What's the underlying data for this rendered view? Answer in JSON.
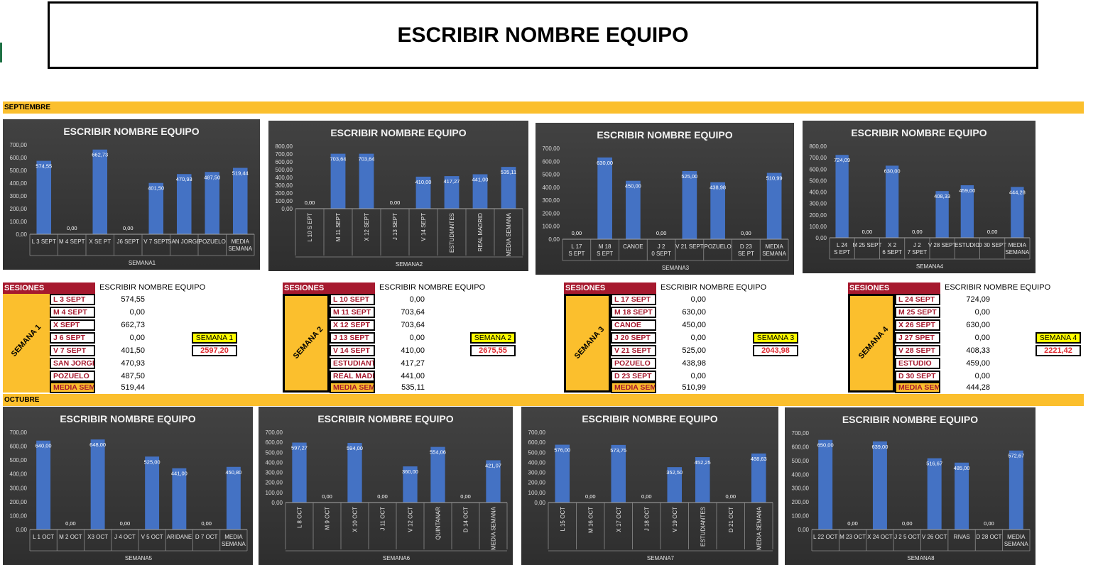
{
  "title": "ESCRIBIR NOMBRE EQUIPO",
  "months": {
    "september": "SEPTIEMBRE",
    "october": "OCTUBRE"
  },
  "colors": {
    "bar": "#4472c4",
    "band": "#fbbf2d",
    "header": "#a6192e",
    "total": "#e0282e"
  },
  "chart_data": [
    {
      "type": "bar",
      "title": "ESCRIBIR NOMBRE EQUIPO",
      "xlabel": "SEMANA1",
      "ylim": [
        0,
        700
      ],
      "yticks": [
        "0,00",
        "100,00",
        "200,00",
        "300,00",
        "400,00",
        "500,00",
        "600,00",
        "700,00"
      ],
      "categories": [
        "L 3 SEPT",
        "M 4 SEPT",
        "X SE PT",
        "J6 SEPT",
        "V 7 SEPT",
        "SAN JORGE",
        "POZUELO",
        "MEDIA SEMANA"
      ],
      "values": [
        574.55,
        0,
        662.73,
        0,
        401.5,
        470.93,
        487.5,
        519.44
      ],
      "labels": [
        "574,55",
        "0,00",
        "662,73",
        "0,00",
        "401,50",
        "470,93",
        "487,50",
        "519,44"
      ]
    },
    {
      "type": "bar",
      "title": "ESCRIBIR NOMBRE EQUIPO",
      "xlabel": "SEMANA2",
      "ylim": [
        0,
        800
      ],
      "yticks": [
        "0,00",
        "100,00",
        "200,00",
        "300,00",
        "400,00",
        "500,00",
        "600,00",
        "700,00",
        "800,00"
      ],
      "categories": [
        "L 10 S EPT",
        "M 11 SEPT",
        "X 12 SEPT",
        "J 13 SEPT",
        "V 14 SEPT",
        "ESTUDIANTES",
        "REAL MADRID",
        "MEDIA SEMANA"
      ],
      "values": [
        0,
        703.64,
        703.64,
        0,
        410,
        417.27,
        441,
        535.11
      ],
      "labels": [
        "0,00",
        "703,64",
        "703,64",
        "0,00",
        "410,00",
        "417,27",
        "441,00",
        "535,11"
      ]
    },
    {
      "type": "bar",
      "title": "ESCRIBIR NOMBRE EQUIPO",
      "xlabel": "SEMANA3",
      "ylim": [
        0,
        700
      ],
      "yticks": [
        "0,00",
        "100,00",
        "200,00",
        "300,00",
        "400,00",
        "500,00",
        "600,00",
        "700,00"
      ],
      "categories": [
        "L 17 S EPT",
        "M 18 S EPT",
        "CANOE",
        "J 2 0 SEPT",
        "V 21 SEPT",
        "POZUELO",
        "D 23 SE PT",
        "MEDIA SEMANA"
      ],
      "values": [
        0,
        630,
        450,
        0,
        525,
        438.98,
        0,
        510.99
      ],
      "labels": [
        "0,00",
        "630,00",
        "450,00",
        "0,00",
        "525,00",
        "438,98",
        "0,00",
        "510,99"
      ]
    },
    {
      "type": "bar",
      "title": "ESCRIBIR NOMBRE EQUIPO",
      "xlabel": "SEMANA4",
      "ylim": [
        0,
        800
      ],
      "yticks": [
        "0,00",
        "100,00",
        "200,00",
        "300,00",
        "400,00",
        "500,00",
        "600,00",
        "700,00",
        "800,00"
      ],
      "categories": [
        "L 24 S EPT",
        "M 25 SEPT",
        "X 2 6 SEPT",
        "J 2 7 SPET",
        "V 28 SEPT",
        "ESTUDIO",
        "D 30 SEPT",
        "MEDIA SEMANA"
      ],
      "values": [
        724.09,
        0,
        630,
        0,
        408.33,
        459,
        0,
        444.28
      ],
      "labels": [
        "724,09",
        "0,00",
        "630,00",
        "0,00",
        "408,33",
        "459,00",
        "0,00",
        "444,28"
      ]
    },
    {
      "type": "bar",
      "title": "ESCRIBIR NOMBRE EQUIPO",
      "xlabel": "SEMANA5",
      "ylim": [
        0,
        700
      ],
      "yticks": [
        "0,00",
        "100,00",
        "200,00",
        "300,00",
        "400,00",
        "500,00",
        "600,00",
        "700,00"
      ],
      "categories": [
        "L 1 OCT",
        "M 2 OCT",
        "X3 OCT",
        "J 4 OCT",
        "V 5 OCT",
        "ARIDANE",
        "D 7 OCT",
        "MEDIA SEMANA"
      ],
      "values": [
        640,
        0,
        648,
        0,
        525,
        441,
        0,
        450.8
      ],
      "labels": [
        "640,00",
        "0,00",
        "648,00",
        "0,00",
        "525,00",
        "441,00",
        "0,00",
        "450,80"
      ]
    },
    {
      "type": "bar",
      "title": "ESCRIBIR NOMBRE EQUIPO",
      "xlabel": "SEMANA6",
      "ylim": [
        0,
        700
      ],
      "yticks": [
        "0,00",
        "100,00",
        "200,00",
        "300,00",
        "400,00",
        "500,00",
        "600,00",
        "700,00"
      ],
      "categories": [
        "L 8 OCT",
        "M 9 OCT",
        "X 10 OCT",
        "J 11 OCT",
        "V 12 OCT",
        "QUINTANAR",
        "D 14 OCT",
        "MEDIA SEMANA"
      ],
      "values": [
        597.27,
        0,
        594,
        0,
        360,
        554.06,
        0,
        421.07
      ],
      "labels": [
        "597,27",
        "0,00",
        "594,00",
        "0,00",
        "360,00",
        "554,06",
        "0,00",
        "421,07"
      ]
    },
    {
      "type": "bar",
      "title": "ESCRIBIR NOMBRE EQUIPO",
      "xlabel": "SEMANA7",
      "ylim": [
        0,
        700
      ],
      "yticks": [
        "0,00",
        "100,00",
        "200,00",
        "300,00",
        "400,00",
        "500,00",
        "600,00",
        "700,00"
      ],
      "categories": [
        "L 15 OCT",
        "M 16 OCT",
        "X 17 OCT",
        "J 18 OCT",
        "V 19 OCT",
        "ESTUDIANTES",
        "D 21 OCT",
        "MEDIA SEMANA"
      ],
      "values": [
        576,
        0,
        573.75,
        0,
        352.5,
        452.25,
        0,
        488.63
      ],
      "labels": [
        "576,00",
        "0,00",
        "573,75",
        "0,00",
        "352,50",
        "452,25",
        "0,00",
        "488,63"
      ]
    },
    {
      "type": "bar",
      "title": "ESCRIBIR NOMBRE EQUIPO",
      "xlabel": "SEMANA8",
      "ylim": [
        0,
        700
      ],
      "yticks": [
        "0,00",
        "100,00",
        "200,00",
        "300,00",
        "400,00",
        "500,00",
        "600,00",
        "700,00"
      ],
      "categories": [
        "L 22 OCT",
        "M 23 OCT",
        "X 24 OCT",
        "J 2 5 OCT",
        "V 26 OCT",
        "RIVAS",
        "D 28 OCT",
        "MEDIA SEMANA"
      ],
      "values": [
        650,
        0,
        639,
        0,
        516.67,
        485,
        0,
        572.67
      ],
      "labels": [
        "650,00",
        "0,00",
        "639,00",
        "0,00",
        "516,67",
        "485,00",
        "0,00",
        "572,67"
      ]
    }
  ],
  "sessions": [
    {
      "header": "SESIONES",
      "team": "ESCRIBIR NOMBRE EQUIPO",
      "week": "SEMANA 1",
      "summary_label": "SEMANA 1",
      "total": "2597,20",
      "rows": [
        {
          "label": "L 3 SEPT",
          "value": "574,55"
        },
        {
          "label": "M 4 SEPT",
          "value": "0,00"
        },
        {
          "label": "X SEPT",
          "value": "662,73"
        },
        {
          "label": "J 6 SEPT",
          "value": "0,00"
        },
        {
          "label": "V 7 SEPT",
          "value": "401,50"
        },
        {
          "label": "SAN JORGE",
          "value": "470,93"
        },
        {
          "label": "POZUELO",
          "value": "487,50"
        },
        {
          "label": "MEDIA SEMA",
          "value": "519,44"
        }
      ]
    },
    {
      "header": "SESIONES",
      "team": "ESCRIBIR NOMBRE EQUIPO",
      "week": "SEMANA 2",
      "summary_label": "SEMANA 2",
      "total": "2675,55",
      "rows": [
        {
          "label": "L 10 SEPT",
          "value": "0,00"
        },
        {
          "label": "M 11 SEPT",
          "value": "703,64"
        },
        {
          "label": "X 12 SEPT",
          "value": "703,64"
        },
        {
          "label": "J 13 SEPT",
          "value": "0,00"
        },
        {
          "label": "V 14 SEPT",
          "value": "410,00"
        },
        {
          "label": "ESTUDIANTI",
          "value": "417,27"
        },
        {
          "label": "REAL MADRI",
          "value": "441,00"
        },
        {
          "label": "MEDIA SEMA",
          "value": "535,11"
        }
      ]
    },
    {
      "header": "SESIONES",
      "team": "ESCRIBIR NOMBRE EQUIPO",
      "week": "SEMANA 3",
      "summary_label": "SEMANA 3",
      "total": "2043,98",
      "rows": [
        {
          "label": "L 17 SEPT",
          "value": "0,00"
        },
        {
          "label": "M 18 SEPT",
          "value": "630,00"
        },
        {
          "label": "CANOE",
          "value": "450,00"
        },
        {
          "label": "J 20 SEPT",
          "value": "0,00"
        },
        {
          "label": "V 21 SEPT",
          "value": "525,00"
        },
        {
          "label": "POZUELO",
          "value": "438,98"
        },
        {
          "label": "D 23 SEPT",
          "value": "0,00"
        },
        {
          "label": "MEDIA SEMA",
          "value": "510,99"
        }
      ]
    },
    {
      "header": "SESIONES",
      "team": "ESCRIBIR NOMBRE EQUIPO",
      "week": "SEMANA 4",
      "summary_label": "SEMANA 4",
      "total": "2221,42",
      "rows": [
        {
          "label": "L 24 SEPT",
          "value": "724,09"
        },
        {
          "label": "M 25 SEPT",
          "value": "0,00"
        },
        {
          "label": "X 26 SEPT",
          "value": "630,00"
        },
        {
          "label": "J 27 SPET",
          "value": "0,00"
        },
        {
          "label": "V 28 SEPT",
          "value": "408,33"
        },
        {
          "label": "ESTUDIO",
          "value": "459,00"
        },
        {
          "label": "D 30 SEPT",
          "value": "0,00"
        },
        {
          "label": "MEDIA SEMA",
          "value": "444,28"
        }
      ]
    }
  ]
}
